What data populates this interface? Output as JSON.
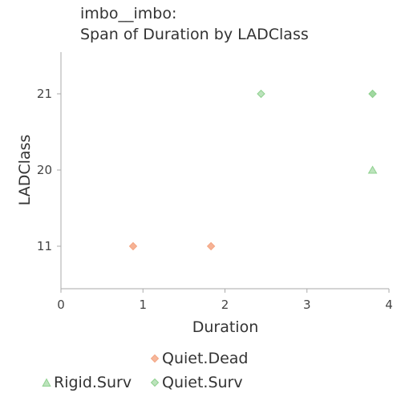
{
  "chart_data": {
    "type": "scatter",
    "title_lines": [
      "imbo__imbo:",
      "Span of Duration by LADClass"
    ],
    "xlabel": "Duration",
    "ylabel": "LADClass",
    "xlim": [
      0,
      4
    ],
    "x_ticks": [
      0,
      1,
      2,
      3,
      4
    ],
    "y_categories": [
      "11",
      "20",
      "21"
    ],
    "grid": false,
    "legend_position": "bottom",
    "series": [
      {
        "name": "Quiet.Dead",
        "marker": "diamond",
        "color": "#f4a582",
        "points": [
          {
            "x": 0.88,
            "y": "11"
          },
          {
            "x": 1.83,
            "y": "11"
          }
        ]
      },
      {
        "name": "Rigid.Surv",
        "marker": "triangle",
        "color": "#8fd18f",
        "points": [
          {
            "x": 3.8,
            "y": "20"
          }
        ]
      },
      {
        "name": "Quiet.Surv",
        "marker": "diamond",
        "color": "#8fd18f",
        "points": [
          {
            "x": 2.44,
            "y": "21"
          },
          {
            "x": 3.8,
            "y": "21"
          },
          {
            "x": 3.8,
            "y": "21"
          }
        ]
      }
    ]
  }
}
